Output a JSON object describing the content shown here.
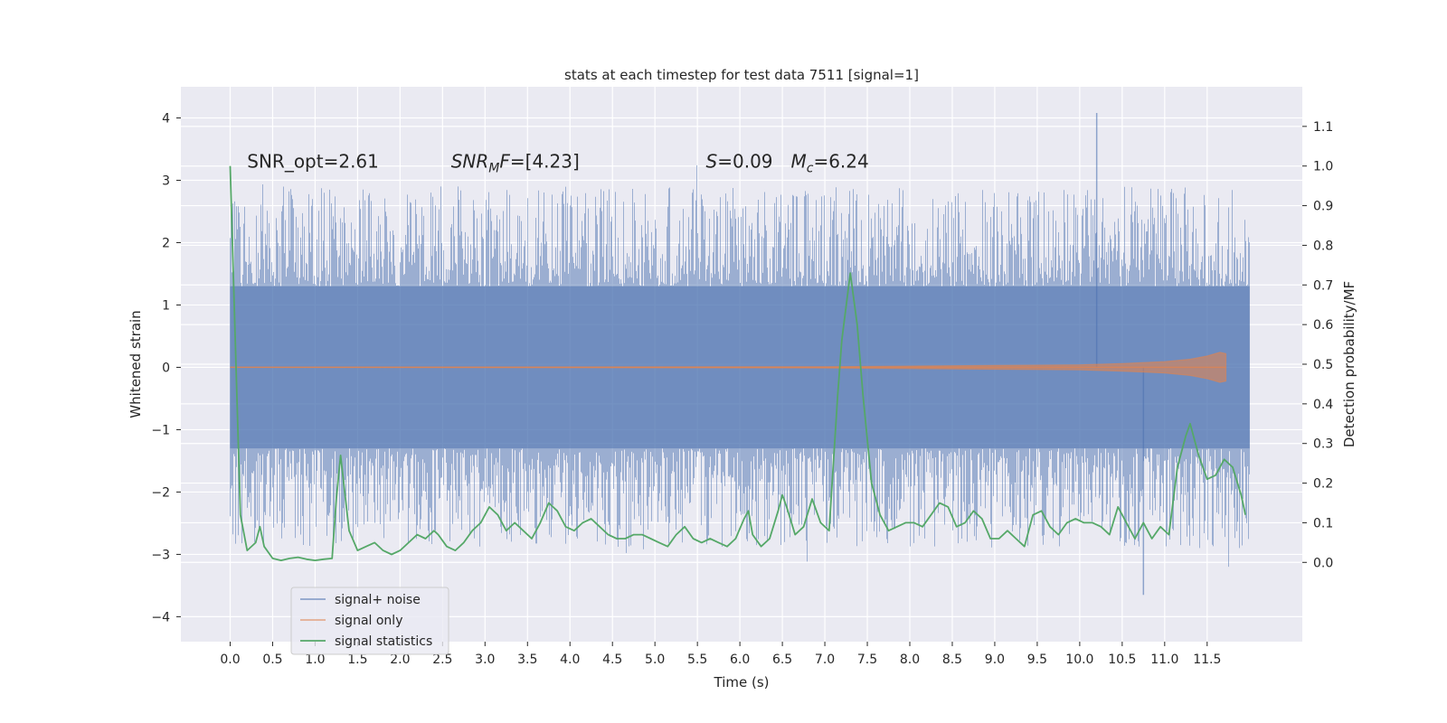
{
  "chart_data": {
    "type": "line",
    "title": "stats at each timestep for test data 7511 [signal=1]",
    "xlabel": "Time (s)",
    "ylabel": "Whitened strain",
    "y2label": "Detection probability/MF",
    "xlim": [
      -0.58,
      12.62
    ],
    "ylim": [
      -4.4,
      4.5
    ],
    "y2lim": [
      -0.2,
      1.2
    ],
    "x_ticks": [
      0.0,
      0.5,
      1.0,
      1.5,
      2.0,
      2.5,
      3.0,
      3.5,
      4.0,
      4.5,
      5.0,
      5.5,
      6.0,
      6.5,
      7.0,
      7.5,
      8.0,
      8.5,
      9.0,
      9.5,
      10.0,
      10.5,
      11.0,
      11.5
    ],
    "x_tick_labels": [
      "0.0",
      "0.5",
      "1.0",
      "1.5",
      "2.0",
      "2.5",
      "3.0",
      "3.5",
      "4.0",
      "4.5",
      "5.0",
      "5.5",
      "6.0",
      "6.5",
      "7.0",
      "7.5",
      "8.0",
      "8.5",
      "9.0",
      "9.5",
      "10.0",
      "10.5",
      "11.0",
      "11.5"
    ],
    "y_ticks": [
      -4,
      -3,
      -2,
      -1,
      0,
      1,
      2,
      3,
      4
    ],
    "y_tick_labels": [
      "−4",
      "−3",
      "−2",
      "−1",
      "0",
      "1",
      "2",
      "3",
      "4"
    ],
    "y2_ticks": [
      0.0,
      0.1,
      0.2,
      0.3,
      0.4,
      0.5,
      0.6,
      0.7,
      0.8,
      0.9,
      1.0,
      1.1
    ],
    "y2_tick_labels": [
      "0.0",
      "0.1",
      "0.2",
      "0.3",
      "0.4",
      "0.5",
      "0.6",
      "0.7",
      "0.8",
      "0.9",
      "1.0",
      "1.1"
    ],
    "grid": true,
    "legend_placement": "lower-left",
    "annotations": [
      {
        "text": "SNR_opt=2.61",
        "x": 0.2,
        "y": 3.2
      },
      {
        "text": "SNR",
        "sub": "M",
        "tail": "F=[4.23]",
        "x": 2.6,
        "y": 3.2
      },
      {
        "text": "S",
        "tail": "=0.09",
        "x": 5.6,
        "y": 3.2
      },
      {
        "text": "M",
        "sub": "c",
        "tail": "=6.24",
        "x": 6.6,
        "y": 3.2
      }
    ],
    "series": [
      {
        "name": "signal+ noise",
        "color": "#4c72b0",
        "kind": "noise",
        "x_range": [
          0.0,
          12.0
        ],
        "core_band": [
          -1.3,
          1.3
        ],
        "typical_peak": [
          -2.9,
          2.9
        ],
        "extreme_max": 4.08,
        "extreme_min": -3.65
      },
      {
        "name": "signal only",
        "color": "#dd8452",
        "kind": "chirp",
        "x": [
          0.0,
          7.0,
          8.0,
          9.0,
          10.0,
          10.5,
          11.0,
          11.3,
          11.5,
          11.65,
          11.72
        ],
        "amplitude": [
          0.0,
          0.01,
          0.02,
          0.03,
          0.04,
          0.06,
          0.09,
          0.13,
          0.18,
          0.24,
          0.22
        ]
      },
      {
        "name": "signal statistics",
        "color": "#55a868",
        "kind": "line",
        "axis": "right",
        "x": [
          0.0,
          0.12,
          0.2,
          0.3,
          0.35,
          0.4,
          0.5,
          0.6,
          0.7,
          0.8,
          0.9,
          1.0,
          1.1,
          1.2,
          1.25,
          1.3,
          1.4,
          1.5,
          1.6,
          1.7,
          1.8,
          1.9,
          2.0,
          2.1,
          2.2,
          2.3,
          2.4,
          2.45,
          2.55,
          2.65,
          2.75,
          2.85,
          2.95,
          3.05,
          3.15,
          3.25,
          3.35,
          3.45,
          3.55,
          3.65,
          3.75,
          3.85,
          3.95,
          4.05,
          4.15,
          4.25,
          4.35,
          4.45,
          4.55,
          4.65,
          4.75,
          4.85,
          4.95,
          5.05,
          5.15,
          5.25,
          5.35,
          5.45,
          5.55,
          5.65,
          5.75,
          5.85,
          5.95,
          6.05,
          6.1,
          6.15,
          6.25,
          6.35,
          6.45,
          6.5,
          6.55,
          6.65,
          6.75,
          6.85,
          6.95,
          7.05,
          7.15,
          7.2,
          7.3,
          7.38,
          7.45,
          7.55,
          7.65,
          7.75,
          7.85,
          7.95,
          8.05,
          8.15,
          8.25,
          8.35,
          8.45,
          8.55,
          8.65,
          8.75,
          8.85,
          8.95,
          9.05,
          9.15,
          9.25,
          9.35,
          9.45,
          9.55,
          9.65,
          9.75,
          9.85,
          9.95,
          10.05,
          10.15,
          10.25,
          10.35,
          10.45,
          10.55,
          10.65,
          10.75,
          10.85,
          10.95,
          11.05,
          11.15,
          11.25,
          11.3,
          11.4,
          11.5,
          11.6,
          11.7,
          11.8,
          11.9,
          11.95
        ],
        "values": [
          1.0,
          0.12,
          0.03,
          0.05,
          0.09,
          0.04,
          0.01,
          0.005,
          0.01,
          0.013,
          0.008,
          0.005,
          0.008,
          0.01,
          0.16,
          0.27,
          0.08,
          0.03,
          0.04,
          0.05,
          0.03,
          0.02,
          0.03,
          0.05,
          0.07,
          0.06,
          0.08,
          0.07,
          0.04,
          0.03,
          0.05,
          0.08,
          0.1,
          0.14,
          0.12,
          0.08,
          0.1,
          0.08,
          0.06,
          0.1,
          0.15,
          0.13,
          0.09,
          0.08,
          0.1,
          0.11,
          0.09,
          0.07,
          0.06,
          0.06,
          0.07,
          0.07,
          0.06,
          0.05,
          0.04,
          0.07,
          0.09,
          0.06,
          0.05,
          0.06,
          0.05,
          0.04,
          0.06,
          0.11,
          0.13,
          0.07,
          0.04,
          0.06,
          0.13,
          0.17,
          0.14,
          0.07,
          0.09,
          0.16,
          0.1,
          0.08,
          0.42,
          0.56,
          0.73,
          0.6,
          0.42,
          0.2,
          0.12,
          0.08,
          0.09,
          0.1,
          0.1,
          0.09,
          0.12,
          0.15,
          0.14,
          0.09,
          0.1,
          0.13,
          0.11,
          0.06,
          0.06,
          0.08,
          0.06,
          0.04,
          0.12,
          0.13,
          0.09,
          0.07,
          0.1,
          0.11,
          0.1,
          0.1,
          0.09,
          0.07,
          0.14,
          0.1,
          0.06,
          0.1,
          0.06,
          0.09,
          0.07,
          0.24,
          0.32,
          0.35,
          0.27,
          0.21,
          0.22,
          0.26,
          0.24,
          0.17,
          0.12
        ]
      }
    ]
  }
}
